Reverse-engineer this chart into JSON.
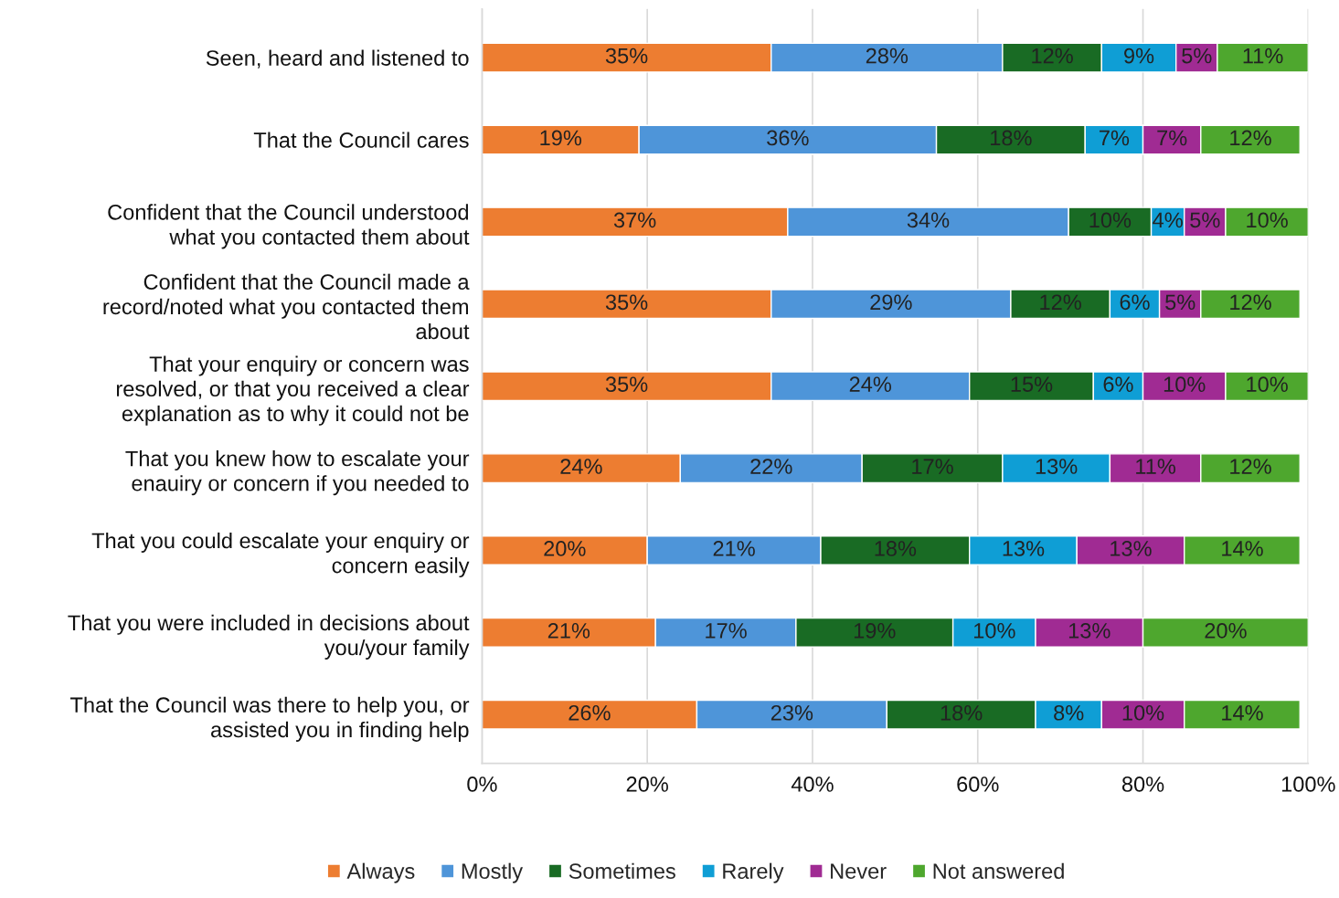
{
  "chart_data": {
    "type": "bar",
    "orientation": "horizontal",
    "stacked": true,
    "grid": "x",
    "legend": "bottom",
    "categories": [
      "Seen, heard and listened to",
      "That the Council cares",
      "Confident that the Council understood\nwhat you contacted them about",
      "Confident that the Council made a\nrecord/noted what you contacted them\nabout",
      "That your enquiry or concern was\nresolved, or that you received a clear\nexplanation as to why it could not be",
      "That you knew how to escalate your\nenauiry or concern if you needed to",
      "That you could escalate your enquiry or\nconcern easily",
      "That you were included in decisions about\nyou/your family",
      "That the Council was there to help you, or\nassisted you in finding help"
    ],
    "xlim": [
      0,
      100
    ],
    "xticks": [
      {
        "value": 0,
        "label": "0%"
      },
      {
        "value": 20,
        "label": "20%"
      },
      {
        "value": 40,
        "label": "40%"
      },
      {
        "value": 60,
        "label": "60%"
      },
      {
        "value": 80,
        "label": "80%"
      },
      {
        "value": 100,
        "label": "100%"
      }
    ],
    "series": [
      {
        "name": "Always",
        "color": "#ed7d31",
        "values": [
          35,
          19,
          37,
          35,
          35,
          24,
          20,
          21,
          26
        ],
        "value_labels": [
          "35%",
          "19%",
          "37%",
          "35%",
          "35%",
          "24%",
          "20%",
          "21%",
          "26%"
        ]
      },
      {
        "name": "Mostly",
        "color": "#4e95d9",
        "values": [
          28,
          36,
          34,
          29,
          24,
          22,
          21,
          17,
          23
        ],
        "value_labels": [
          "28%",
          "36%",
          "34%",
          "29%",
          "24%",
          "22%",
          "21%",
          "17%",
          "23%"
        ]
      },
      {
        "name": "Sometimes",
        "color": "#196b24",
        "values": [
          12,
          18,
          10,
          12,
          15,
          17,
          18,
          19,
          18
        ],
        "value_labels": [
          "12%",
          "18%",
          "10%",
          "12%",
          "15%",
          "17%",
          "18%",
          "19%",
          "18%"
        ]
      },
      {
        "name": "Rarely",
        "color": "#0f9ed5",
        "values": [
          9,
          7,
          4,
          6,
          6,
          13,
          13,
          10,
          8
        ],
        "value_labels": [
          "9%",
          "7%",
          "4%",
          "6%",
          "6%",
          "13%",
          "13%",
          "10%",
          "8%"
        ]
      },
      {
        "name": "Never",
        "color": "#a02b93",
        "values": [
          5,
          7,
          5,
          5,
          10,
          11,
          13,
          13,
          10
        ],
        "value_labels": [
          "5%",
          "7%",
          "5%",
          "5%",
          "10%",
          "11%",
          "13%",
          "13%",
          "10%"
        ]
      },
      {
        "name": "Not answered",
        "color": "#4ea72e",
        "values": [
          11,
          12,
          10,
          12,
          10,
          12,
          14,
          20,
          14
        ],
        "value_labels": [
          "11%",
          "12%",
          "10%",
          "12%",
          "10%",
          "12%",
          "14%",
          "20%",
          "14%"
        ]
      }
    ]
  }
}
